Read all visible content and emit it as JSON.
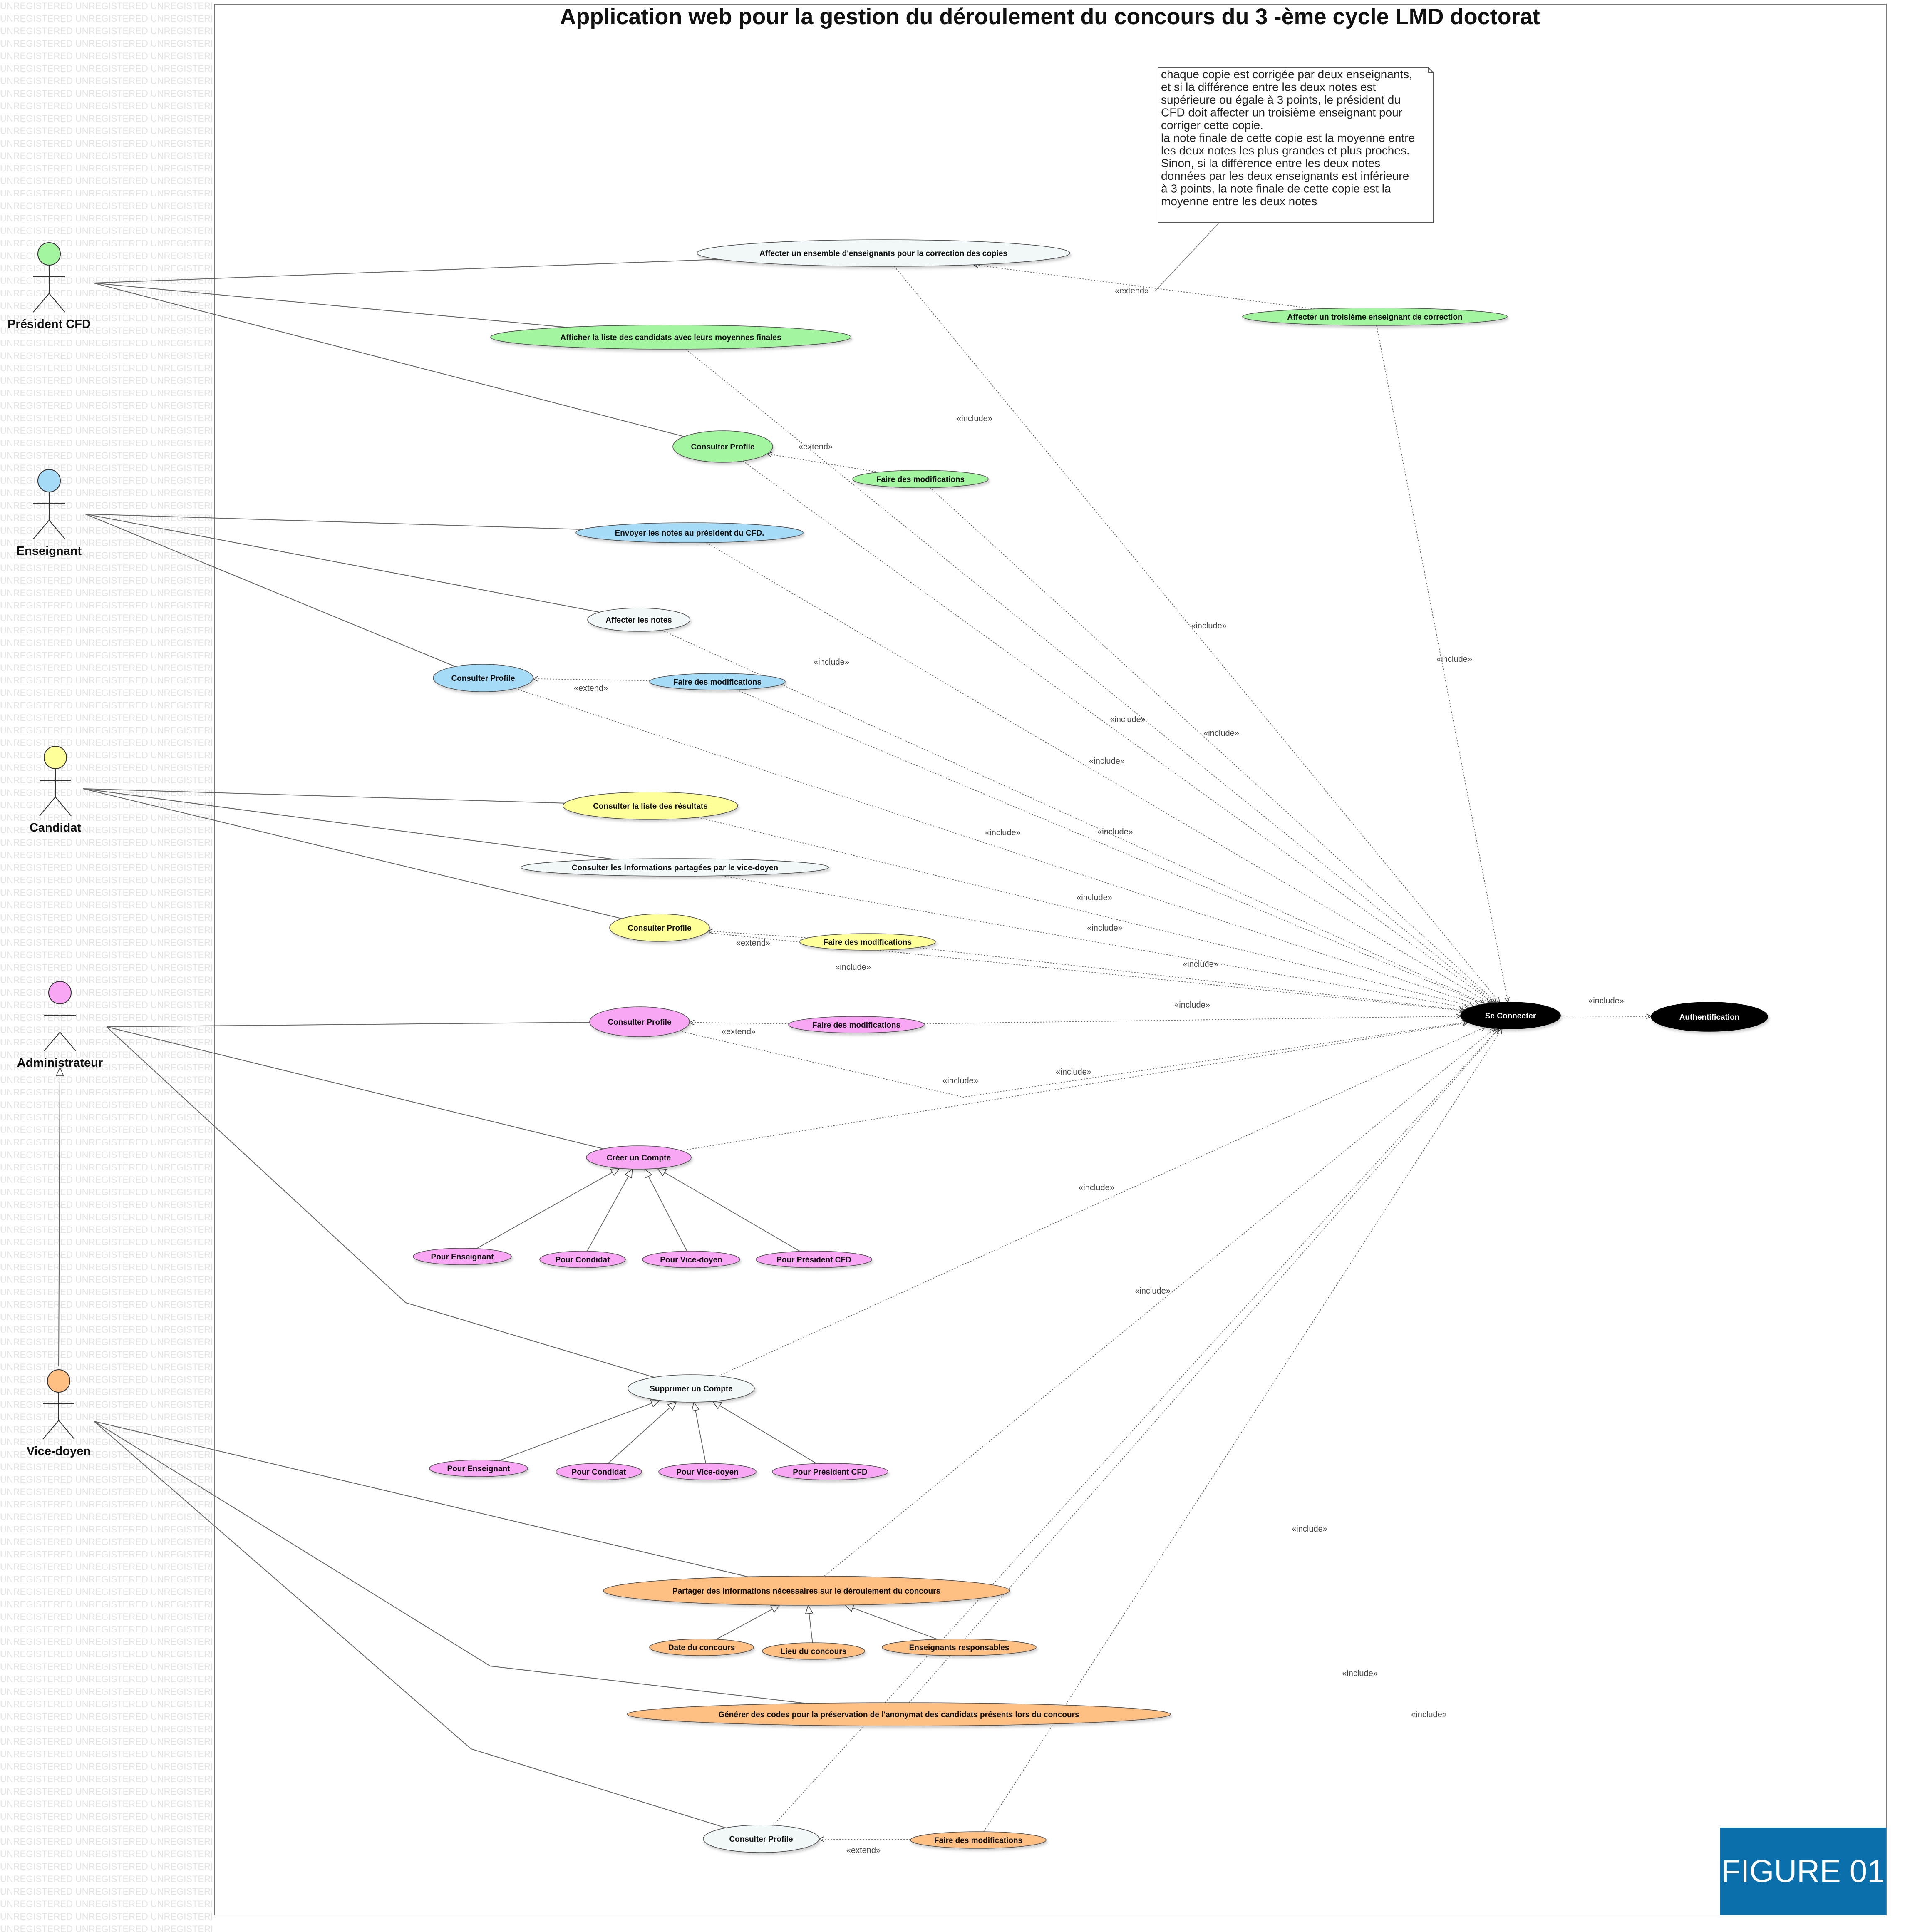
{
  "title": "Application web pour la gestion du déroulement du concours du 3 -ème cycle LMD doctorat",
  "watermark": "UNREGISTERED",
  "figure_label": "FIGURE 01",
  "note": [
    "chaque copie est corrigée par deux enseignants,",
    "et si la différence entre les deux notes est",
    "supérieure ou égale à 3 points, le président du",
    "CFD doit affecter un troisième enseignant pour",
    "corriger cette copie.",
    "la note finale de cette copie est la moyenne entre",
    "les deux notes les plus grandes et plus proches.",
    "Sinon, si la différence entre les deux notes",
    "données par les deux enseignants est inférieure",
    "à 3 points, la note finale de cette copie est la",
    "moyenne entre les deux notes"
  ],
  "colors": {
    "president": "#a3f5a0",
    "enseignant": "#a6dcf7",
    "candidat": "#ffff99",
    "admin": "#f9a6f5",
    "vicedoyen": "#ffbe82",
    "neutral": "#f3f9fb",
    "dark": "#000000",
    "badge": "#0a6fab"
  },
  "actors": [
    {
      "id": "president",
      "label": "Président CFD",
      "color": "#a3f5a0"
    },
    {
      "id": "enseignant",
      "label": "Enseignant",
      "color": "#a6dcf7"
    },
    {
      "id": "candidat",
      "label": "Candidat",
      "color": "#ffff99"
    },
    {
      "id": "admin",
      "label": "Administrateur",
      "color": "#f9a6f5"
    },
    {
      "id": "vicedoyen",
      "label": "Vice-doyen",
      "color": "#ffbe82"
    }
  ],
  "usecases": [
    {
      "id": "uc_affecter_ens",
      "label": "Affecter un ensemble d'enseignants pour la correction des copies",
      "color": "#f3f9fb"
    },
    {
      "id": "uc_afficher_liste",
      "label": "Afficher la liste des candidats avec leurs moyennes finales",
      "color": "#a3f5a0"
    },
    {
      "id": "uc_affecter_3e",
      "label": "Affecter un troisième enseignant de correction",
      "color": "#a3f5a0"
    },
    {
      "id": "uc_p_profile",
      "label": "Consulter Profile",
      "color": "#a3f5a0"
    },
    {
      "id": "uc_p_modif",
      "label": "Faire des modifications",
      "color": "#a3f5a0"
    },
    {
      "id": "uc_envoyer_notes",
      "label": "Envoyer les notes au président du CFD.",
      "color": "#a6dcf7"
    },
    {
      "id": "uc_affecter_notes",
      "label": "Affecter les notes",
      "color": "#f3f9fb"
    },
    {
      "id": "uc_e_profile",
      "label": "Consulter Profile",
      "color": "#a6dcf7"
    },
    {
      "id": "uc_e_modif",
      "label": "Faire des modifications",
      "color": "#a6dcf7"
    },
    {
      "id": "uc_resultats",
      "label": "Consulter la liste des résultats",
      "color": "#ffff99"
    },
    {
      "id": "uc_infos",
      "label": "Consulter les Informations partagées par le vice-doyen",
      "color": "#f3f9fb"
    },
    {
      "id": "uc_c_profile",
      "label": "Consulter Profile",
      "color": "#ffff99"
    },
    {
      "id": "uc_c_modif",
      "label": "Faire des modifications",
      "color": "#ffff99"
    },
    {
      "id": "uc_a_profile",
      "label": "Consulter Profile",
      "color": "#f9a6f5"
    },
    {
      "id": "uc_a_modif",
      "label": "Faire des modifications",
      "color": "#f9a6f5"
    },
    {
      "id": "uc_creer",
      "label": "Créer un Compte",
      "color": "#f9a6f5"
    },
    {
      "id": "uc_cr_ens",
      "label": "Pour Enseignant",
      "color": "#f9a6f5"
    },
    {
      "id": "uc_cr_cand",
      "label": "Pour Condidat",
      "color": "#f9a6f5"
    },
    {
      "id": "uc_cr_vd",
      "label": "Pour Vice-doyen",
      "color": "#f9a6f5"
    },
    {
      "id": "uc_cr_pres",
      "label": "Pour Président CFD",
      "color": "#f9a6f5"
    },
    {
      "id": "uc_supprimer",
      "label": "Supprimer un Compte",
      "color": "#f3f9fb"
    },
    {
      "id": "uc_sp_ens",
      "label": "Pour Enseignant",
      "color": "#f9a6f5"
    },
    {
      "id": "uc_sp_cand",
      "label": "Pour Condidat",
      "color": "#f9a6f5"
    },
    {
      "id": "uc_sp_vd",
      "label": "Pour Vice-doyen",
      "color": "#f9a6f5"
    },
    {
      "id": "uc_sp_pres",
      "label": "Pour Président CFD",
      "color": "#f9a6f5"
    },
    {
      "id": "uc_partager",
      "label": "Partager des informations nécessaires sur le déroulement du  concours",
      "color": "#ffbe82"
    },
    {
      "id": "uc_date",
      "label": "Date du concours",
      "color": "#ffbe82"
    },
    {
      "id": "uc_lieu",
      "label": "Lieu du concours",
      "color": "#ffbe82"
    },
    {
      "id": "uc_ens_resp",
      "label": "Enseignants responsables",
      "color": "#ffbe82"
    },
    {
      "id": "uc_generer",
      "label": "Générer des codes pour la préservation de l'anonymat des candidats présents  lors du concours",
      "color": "#ffbe82"
    },
    {
      "id": "uc_v_profile",
      "label": "Consulter Profile",
      "color": "#f3f9fb"
    },
    {
      "id": "uc_v_modif",
      "label": "Faire des modifications",
      "color": "#ffbe82"
    },
    {
      "id": "uc_connecter",
      "label": "Se Connecter",
      "color": "#000000"
    },
    {
      "id": "uc_auth",
      "label": "Authentification",
      "color": "#000000"
    }
  ],
  "associations": [
    [
      "president",
      "uc_affecter_ens"
    ],
    [
      "president",
      "uc_afficher_liste"
    ],
    [
      "president",
      "uc_p_profile"
    ],
    [
      "enseignant",
      "uc_envoyer_notes"
    ],
    [
      "enseignant",
      "uc_affecter_notes"
    ],
    [
      "enseignant",
      "uc_e_profile"
    ],
    [
      "candidat",
      "uc_resultats"
    ],
    [
      "candidat",
      "uc_infos"
    ],
    [
      "candidat",
      "uc_c_profile"
    ],
    [
      "admin",
      "uc_a_profile"
    ],
    [
      "admin",
      "uc_creer"
    ],
    [
      "admin",
      "uc_supprimer"
    ],
    [
      "vicedoyen",
      "uc_partager"
    ],
    [
      "vicedoyen",
      "uc_generer"
    ],
    [
      "vicedoyen",
      "uc_v_profile"
    ]
  ],
  "relations": [
    {
      "from": "uc_affecter_3e",
      "to": "uc_affecter_ens",
      "label": "«extend»"
    },
    {
      "from": "uc_p_modif",
      "to": "uc_p_profile",
      "label": "«extend»"
    },
    {
      "from": "uc_e_modif",
      "to": "uc_e_profile",
      "label": "«extend»"
    },
    {
      "from": "uc_c_modif",
      "to": "uc_c_profile",
      "label": "«extend»"
    },
    {
      "from": "uc_a_modif",
      "to": "uc_a_profile",
      "label": "«extend»"
    },
    {
      "from": "uc_v_modif",
      "to": "uc_v_profile",
      "label": "«extend»"
    },
    {
      "from": "uc_affecter_ens",
      "to": "uc_connecter",
      "label": "«include»"
    },
    {
      "from": "uc_afficher_liste",
      "to": "uc_connecter",
      "label": "«include»"
    },
    {
      "from": "uc_affecter_3e",
      "to": "uc_connecter",
      "label": "«include»"
    },
    {
      "from": "uc_p_profile",
      "to": "uc_connecter",
      "label": "«include»"
    },
    {
      "from": "uc_p_modif",
      "to": "uc_connecter",
      "label": "«include»"
    },
    {
      "from": "uc_envoyer_notes",
      "to": "uc_connecter",
      "label": "«include»"
    },
    {
      "from": "uc_affecter_notes",
      "to": "uc_connecter",
      "label": "«include»"
    },
    {
      "from": "uc_e_profile",
      "to": "uc_connecter",
      "label": "«include»"
    },
    {
      "from": "uc_e_modif",
      "to": "uc_connecter",
      "label": "«include»"
    },
    {
      "from": "uc_resultats",
      "to": "uc_connecter",
      "label": "«include»"
    },
    {
      "from": "uc_infos",
      "to": "uc_connecter",
      "label": "«include»"
    },
    {
      "from": "uc_c_profile",
      "to": "uc_connecter",
      "label": "«include»"
    },
    {
      "from": "uc_c_modif",
      "to": "uc_connecter",
      "label": "«include»"
    },
    {
      "from": "uc_a_modif",
      "to": "uc_connecter",
      "label": "«include»"
    },
    {
      "from": "uc_a_profile",
      "to": "uc_connecter",
      "label": "«include»"
    },
    {
      "from": "uc_creer",
      "to": "uc_connecter",
      "label": "«include»"
    },
    {
      "from": "uc_supprimer",
      "to": "uc_connecter",
      "label": "«include»"
    },
    {
      "from": "uc_partager",
      "to": "uc_connecter",
      "label": "«include»"
    },
    {
      "from": "uc_generer",
      "to": "uc_connecter",
      "label": "«include»"
    },
    {
      "from": "uc_v_profile",
      "to": "uc_connecter",
      "label": "«include»"
    },
    {
      "from": "uc_v_modif",
      "to": "uc_connecter",
      "label": "«include»"
    },
    {
      "from": "uc_connecter",
      "to": "uc_auth",
      "label": "«include»"
    }
  ],
  "generalizations": [
    [
      "vicedoyen",
      "admin"
    ],
    [
      "uc_cr_ens",
      "uc_creer"
    ],
    [
      "uc_cr_cand",
      "uc_creer"
    ],
    [
      "uc_cr_vd",
      "uc_creer"
    ],
    [
      "uc_cr_pres",
      "uc_creer"
    ],
    [
      "uc_sp_ens",
      "uc_supprimer"
    ],
    [
      "uc_sp_cand",
      "uc_supprimer"
    ],
    [
      "uc_sp_vd",
      "uc_supprimer"
    ],
    [
      "uc_sp_pres",
      "uc_supprimer"
    ],
    [
      "uc_date",
      "uc_partager"
    ],
    [
      "uc_lieu",
      "uc_partager"
    ],
    [
      "uc_ens_resp",
      "uc_partager"
    ]
  ]
}
